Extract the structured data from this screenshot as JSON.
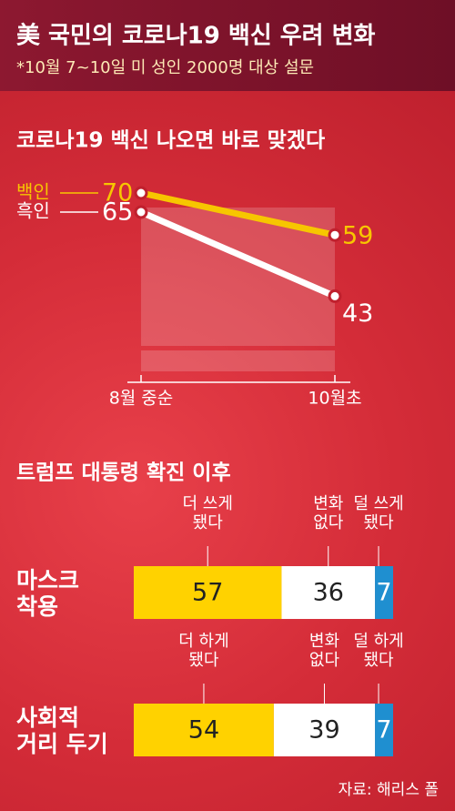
{
  "header": {
    "title": "美 국민의 코로나19 백신 우려 변화",
    "subtitle": "*10월 7~10일 미 성인 2000명 대상 설문"
  },
  "chart_data": [
    {
      "type": "line",
      "title": "코로나19 백신 나오면 바로 맞겠다",
      "categories": [
        "8월 중순",
        "10월초"
      ],
      "series": [
        {
          "name": "백인",
          "color": "#f7c600",
          "values": [
            70,
            59
          ]
        },
        {
          "name": "흑인",
          "color": "#ffffff",
          "values": [
            65,
            43
          ]
        }
      ]
    },
    {
      "type": "stacked-bar",
      "title": "트럼프 대통령 확진 이후",
      "categories": [
        "마스크 착용"
      ],
      "series": [
        {
          "name": "더 쓰게 됐다",
          "color": "#ffd200",
          "values": [
            57
          ]
        },
        {
          "name": "변화 없다",
          "color": "#ffffff",
          "values": [
            36
          ]
        },
        {
          "name": "덜 쓰게 됐다",
          "color": "#1f8fd0",
          "values": [
            7
          ]
        }
      ]
    },
    {
      "type": "stacked-bar",
      "categories": [
        "사회적 거리 두기"
      ],
      "series": [
        {
          "name": "더 하게 됐다",
          "color": "#ffd200",
          "values": [
            54
          ]
        },
        {
          "name": "변화 없다",
          "color": "#ffffff",
          "values": [
            39
          ]
        },
        {
          "name": "덜 하게 됐다",
          "color": "#1f8fd0",
          "values": [
            7
          ]
        }
      ]
    }
  ],
  "source": "자료: 해리스 폴"
}
